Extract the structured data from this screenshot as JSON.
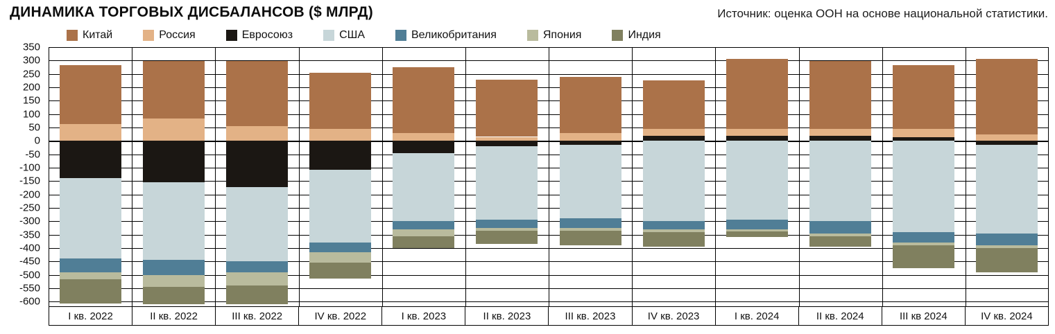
{
  "header": {
    "title": "ДИНАМИКА ТОРГОВЫХ ДИСБАЛАНСОВ ($ МЛРД)",
    "source": "Источник: оценка ООН на основе национальной статистики."
  },
  "chart_data": {
    "type": "bar",
    "stacked": true,
    "title": "ДИНАМИКА ТОРГОВЫХ ДИСБАЛАНСОВ ($ МЛРД)",
    "xlabel": "",
    "ylabel": "$ млрд",
    "grid": true,
    "legend_position": "top",
    "ylim": [
      -620,
      350
    ],
    "ytick_min": -600,
    "ytick_max": 350,
    "ytick_step": 50,
    "categories": [
      "I кв. 2022",
      "II кв. 2022",
      "III кв. 2022",
      "IV кв. 2022",
      "I кв. 2023",
      "II кв. 2023",
      "III кв. 2023",
      "IV кв. 2023",
      "I кв. 2024",
      "II кв. 2024",
      "III кв 2024",
      "IV кв. 2024"
    ],
    "series": [
      {
        "name": "Китай",
        "key": "china",
        "color": "#ab7249",
        "values": [
          222,
          214,
          242,
          210,
          246,
          214,
          211,
          181,
          260,
          252,
          239,
          280
        ]
      },
      {
        "name": "Россия",
        "key": "russia",
        "color": "#e3b286",
        "values": [
          62,
          83,
          55,
          45,
          30,
          15,
          28,
          25,
          25,
          25,
          30,
          25
        ]
      },
      {
        "name": "Евросоюз",
        "key": "eu",
        "color": "#1b1713",
        "values": [
          -140,
          -155,
          -172,
          -108,
          -45,
          -20,
          -15,
          20,
          20,
          20,
          15,
          -15
        ]
      },
      {
        "name": "США",
        "key": "usa",
        "color": "#c7d6d9",
        "values": [
          -298,
          -290,
          -278,
          -272,
          -255,
          -275,
          -275,
          -300,
          -295,
          -300,
          -340,
          -330
        ]
      },
      {
        "name": "Великобритания",
        "key": "uk",
        "color": "#507e96",
        "values": [
          -52,
          -55,
          -40,
          -35,
          -30,
          -30,
          -35,
          -30,
          -35,
          -45,
          -40,
          -45
        ]
      },
      {
        "name": "Япония",
        "key": "japan",
        "color": "#b9bb9d",
        "values": [
          -26,
          -45,
          -50,
          -40,
          -25,
          -10,
          -10,
          -10,
          -8,
          -10,
          -10,
          -10
        ]
      },
      {
        "name": "Индия",
        "key": "india",
        "color": "#80805f",
        "values": [
          -90,
          -65,
          -70,
          -60,
          -45,
          -50,
          -55,
          -55,
          -20,
          -40,
          -85,
          -90
        ]
      }
    ],
    "positive_stack_order_keys": [
      "eu",
      "russia",
      "china"
    ],
    "negative_stack_order_keys": [
      "eu",
      "usa",
      "uk",
      "japan",
      "india"
    ]
  }
}
